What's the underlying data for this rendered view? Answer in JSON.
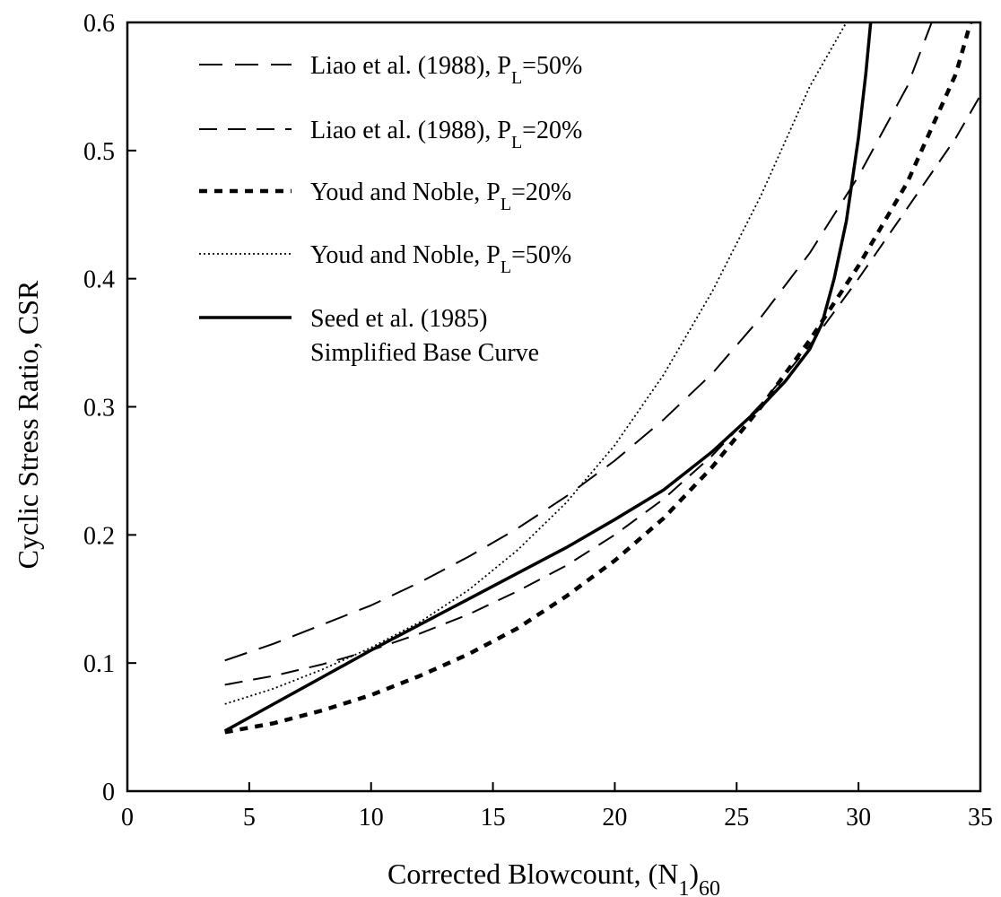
{
  "chart_data": {
    "type": "line",
    "xlabel": "Corrected Blowcount, (N",
    "xlabel_sub1": "1",
    "xlabel_close": ")",
    "xlabel_sub2": "60",
    "ylabel": "Cyclic Stress Ratio, CSR",
    "xlim": [
      0,
      35
    ],
    "ylim": [
      0,
      0.6
    ],
    "xticks": [
      0,
      5,
      10,
      15,
      20,
      25,
      30,
      35
    ],
    "xtick_labels": [
      "0",
      "5",
      "10",
      "15",
      "20",
      "25",
      "30",
      "35"
    ],
    "yticks": [
      0,
      0.1,
      0.2,
      0.3,
      0.4,
      0.5,
      0.6
    ],
    "ytick_labels": [
      "0",
      "0.1",
      "0.2",
      "0.3",
      "0.4",
      "0.5",
      "0.6"
    ],
    "grid": false,
    "legend_position": "top-left",
    "series": [
      {
        "name": "Liao et al. (1988), P",
        "sub": "L",
        "suffix": "=50%",
        "style": "long-dash",
        "x": [
          4,
          6,
          8,
          10,
          12,
          14,
          16,
          18,
          20,
          22,
          24,
          26,
          28,
          30,
          32,
          33
        ],
        "y": [
          0.102,
          0.115,
          0.13,
          0.145,
          0.163,
          0.183,
          0.205,
          0.23,
          0.258,
          0.29,
          0.326,
          0.37,
          0.42,
          0.48,
          0.55,
          0.6
        ]
      },
      {
        "name": "Liao et al. (1988), P",
        "sub": "L",
        "suffix": "=20%",
        "style": "medium-dash",
        "x": [
          4,
          6,
          8,
          10,
          12,
          14,
          16,
          18,
          20,
          22,
          24,
          26,
          28,
          30,
          32,
          34,
          35
        ],
        "y": [
          0.083,
          0.09,
          0.099,
          0.11,
          0.123,
          0.138,
          0.156,
          0.176,
          0.2,
          0.228,
          0.262,
          0.302,
          0.348,
          0.4,
          0.455,
          0.51,
          0.543
        ]
      },
      {
        "name": "Youd and Noble, P",
        "sub": "L",
        "suffix": "=20%",
        "style": "short-dash",
        "x": [
          4,
          6,
          8,
          10,
          12,
          14,
          16,
          18,
          20,
          22,
          24,
          26,
          28,
          30,
          32,
          34,
          34.6
        ],
        "y": [
          0.046,
          0.053,
          0.063,
          0.075,
          0.09,
          0.107,
          0.127,
          0.152,
          0.18,
          0.213,
          0.253,
          0.3,
          0.352,
          0.41,
          0.475,
          0.56,
          0.6
        ]
      },
      {
        "name": "Youd and Noble, P",
        "sub": "L",
        "suffix": "=50%",
        "style": "dotted",
        "x": [
          4,
          6,
          8,
          10,
          12,
          14,
          16,
          18,
          20,
          22,
          24,
          26,
          28,
          29.5
        ],
        "y": [
          0.068,
          0.08,
          0.095,
          0.112,
          0.132,
          0.157,
          0.188,
          0.225,
          0.27,
          0.325,
          0.39,
          0.465,
          0.55,
          0.6
        ]
      },
      {
        "name": "Seed et al. (1985)",
        "name_line2": "Simplified Base Curve",
        "style": "solid",
        "x": [
          4,
          6,
          8,
          10,
          12,
          14,
          16,
          18,
          20,
          22,
          24,
          26,
          27,
          28,
          28.5,
          29,
          29.5,
          30,
          30.3,
          30.5
        ],
        "y": [
          0.047,
          0.068,
          0.089,
          0.11,
          0.13,
          0.15,
          0.17,
          0.19,
          0.212,
          0.235,
          0.265,
          0.3,
          0.32,
          0.345,
          0.365,
          0.4,
          0.445,
          0.51,
          0.56,
          0.6
        ]
      }
    ]
  }
}
